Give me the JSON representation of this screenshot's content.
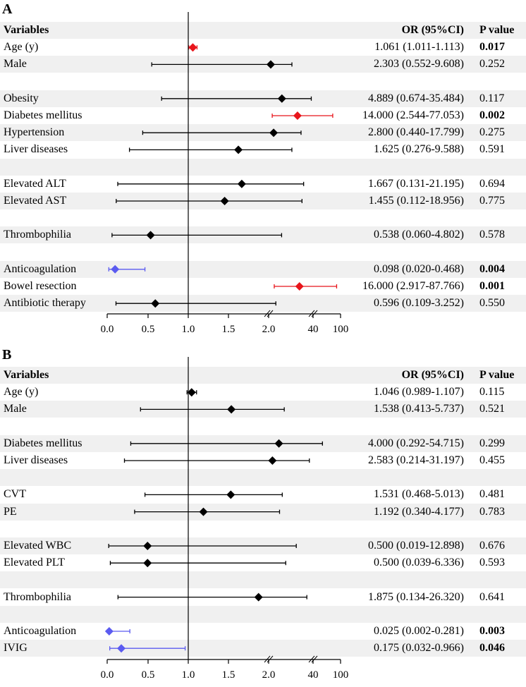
{
  "chart_data": [
    {
      "type": "forest",
      "panel": "A",
      "headers": {
        "variable": "Variables",
        "or": "OR (95%CI)",
        "p": "P value"
      },
      "x_ticks": [
        "0.0",
        "0.5",
        "1.0",
        "1.5",
        "2.0",
        "40",
        "100"
      ],
      "reference_line": 1.0,
      "rows": [
        {
          "label": "Age (y)",
          "or": 1.061,
          "lo": 1.011,
          "hi": 1.113,
          "or_text": "1.061 (1.011-1.113)",
          "p": "0.017",
          "sig": true,
          "color": "#e8151b"
        },
        {
          "label": "Male",
          "or": 2.303,
          "lo": 0.552,
          "hi": 9.608,
          "or_text": "2.303 (0.552-9.608)",
          "p": "0.252",
          "sig": false,
          "color": "#000000"
        },
        null,
        {
          "label": "Obesity",
          "or": 4.889,
          "lo": 0.674,
          "hi": 35.484,
          "or_text": "4.889 (0.674-35.484)",
          "p": "0.117",
          "sig": false,
          "color": "#000000"
        },
        {
          "label": "Diabetes mellitus",
          "or": 14.0,
          "lo": 2.544,
          "hi": 77.053,
          "or_text": "14.000 (2.544-77.053)",
          "p": "0.002",
          "sig": true,
          "color": "#e8151b"
        },
        {
          "label": "Hypertension",
          "or": 2.8,
          "lo": 0.44,
          "hi": 17.799,
          "or_text": "2.800 (0.440-17.799)",
          "p": "0.275",
          "sig": false,
          "color": "#000000"
        },
        {
          "label": "Liver diseases",
          "or": 1.625,
          "lo": 0.276,
          "hi": 9.588,
          "or_text": "1.625 (0.276-9.588)",
          "p": "0.591",
          "sig": false,
          "color": "#000000"
        },
        null,
        {
          "label": "Elevated ALT",
          "or": 1.667,
          "lo": 0.131,
          "hi": 21.195,
          "or_text": "1.667 (0.131-21.195)",
          "p": "0.694",
          "sig": false,
          "color": "#000000"
        },
        {
          "label": "Elevated AST",
          "or": 1.455,
          "lo": 0.112,
          "hi": 18.956,
          "or_text": "1.455 (0.112-18.956)",
          "p": "0.775",
          "sig": false,
          "color": "#000000"
        },
        null,
        {
          "label": "Thrombophilia",
          "or": 0.538,
          "lo": 0.06,
          "hi": 4.802,
          "or_text": "0.538 (0.060-4.802)",
          "p": "0.578",
          "sig": false,
          "color": "#000000"
        },
        null,
        {
          "label": "Anticoagulation",
          "or": 0.098,
          "lo": 0.02,
          "hi": 0.468,
          "or_text": "0.098 (0.020-0.468)",
          "p": "0.004",
          "sig": true,
          "color": "#5b5bf0"
        },
        {
          "label": "Bowel resection",
          "or": 16.0,
          "lo": 2.917,
          "hi": 87.766,
          "or_text": "16.000 (2.917-87.766)",
          "p": "0.001",
          "sig": true,
          "color": "#e8151b"
        },
        {
          "label": "Antibiotic therapy",
          "or": 0.596,
          "lo": 0.109,
          "hi": 3.252,
          "or_text": "0.596 (0.109-3.252)",
          "p": "0.550",
          "sig": false,
          "color": "#000000"
        }
      ]
    },
    {
      "type": "forest",
      "panel": "B",
      "headers": {
        "variable": "Variables",
        "or": "OR (95%CI)",
        "p": "P value"
      },
      "x_ticks": [
        "0.0",
        "0.5",
        "1.0",
        "1.5",
        "2.0",
        "40",
        "100"
      ],
      "reference_line": 1.0,
      "rows": [
        {
          "label": "Age (y)",
          "or": 1.046,
          "lo": 0.989,
          "hi": 1.107,
          "or_text": "1.046 (0.989-1.107)",
          "p": "0.115",
          "sig": false,
          "color": "#000000"
        },
        {
          "label": "Male",
          "or": 1.538,
          "lo": 0.413,
          "hi": 5.737,
          "or_text": "1.538 (0.413-5.737)",
          "p": "0.521",
          "sig": false,
          "color": "#000000"
        },
        null,
        {
          "label": "Diabetes mellitus",
          "or": 4.0,
          "lo": 0.292,
          "hi": 54.715,
          "or_text": "4.000 (0.292-54.715)",
          "p": "0.299",
          "sig": false,
          "color": "#000000"
        },
        {
          "label": "Liver diseases",
          "or": 2.583,
          "lo": 0.214,
          "hi": 31.197,
          "or_text": "2.583 (0.214-31.197)",
          "p": "0.455",
          "sig": false,
          "color": "#000000"
        },
        null,
        {
          "label": "CVT",
          "or": 1.531,
          "lo": 0.468,
          "hi": 5.013,
          "or_text": "1.531 (0.468-5.013)",
          "p": "0.481",
          "sig": false,
          "color": "#000000"
        },
        {
          "label": "PE",
          "or": 1.192,
          "lo": 0.34,
          "hi": 4.177,
          "or_text": "1.192 (0.340-4.177)",
          "p": "0.783",
          "sig": false,
          "color": "#000000"
        },
        null,
        {
          "label": "Elevated WBC",
          "or": 0.5,
          "lo": 0.019,
          "hi": 12.898,
          "or_text": "0.500 (0.019-12.898)",
          "p": "0.676",
          "sig": false,
          "color": "#000000"
        },
        {
          "label": "Elevated PLT",
          "or": 0.5,
          "lo": 0.039,
          "hi": 6.336,
          "or_text": "0.500 (0.039-6.336)",
          "p": "0.593",
          "sig": false,
          "color": "#000000"
        },
        null,
        {
          "label": "Thrombophilia",
          "or": 1.875,
          "lo": 0.134,
          "hi": 26.32,
          "or_text": "1.875 (0.134-26.320)",
          "p": "0.641",
          "sig": false,
          "color": "#000000"
        },
        null,
        {
          "label": "Anticoagulation",
          "or": 0.025,
          "lo": 0.002,
          "hi": 0.281,
          "or_text": "0.025 (0.002-0.281)",
          "p": "0.003",
          "sig": true,
          "color": "#5b5bf0"
        },
        {
          "label": "IVIG",
          "or": 0.175,
          "lo": 0.032,
          "hi": 0.966,
          "or_text": "0.175 (0.032-0.966)",
          "p": "0.046",
          "sig": true,
          "color": "#5b5bf0"
        }
      ]
    }
  ]
}
